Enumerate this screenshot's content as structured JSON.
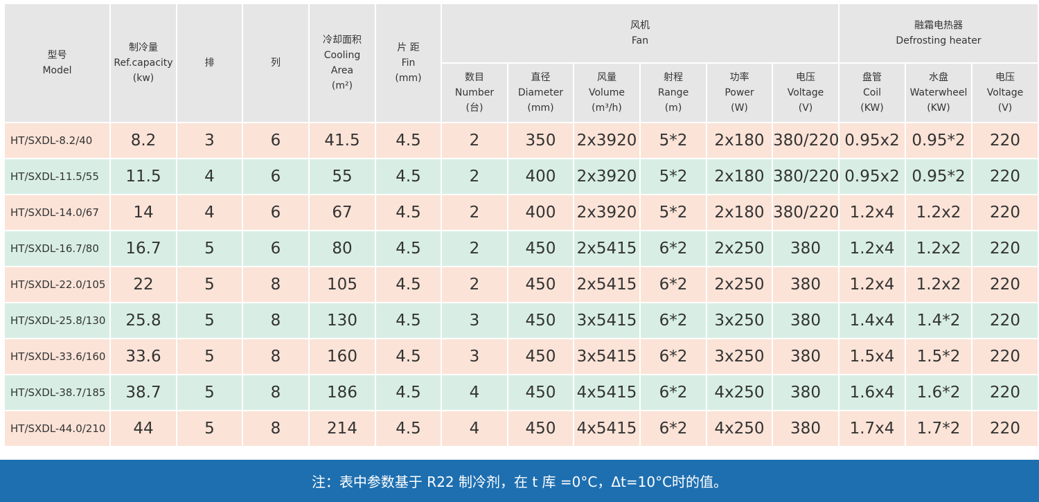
{
  "header": {
    "model": [
      "型号",
      "Model"
    ],
    "capacity": [
      "制冷量",
      "Ref.capacity",
      "(kw)"
    ],
    "rows": [
      "排"
    ],
    "cols": [
      "列"
    ],
    "area": [
      "冷却面积",
      "Cooling",
      "Area",
      "(m²)"
    ],
    "fin": [
      "片 距",
      "Fin",
      "(mm)"
    ],
    "fan_group": [
      "风机",
      "Fan"
    ],
    "defrost_group": [
      "融霜电热器",
      "Defrosting heater"
    ],
    "fan_number": [
      "数目",
      "Number",
      "(台)"
    ],
    "fan_diameter": [
      "直径",
      "Diameter",
      "(mm)"
    ],
    "fan_volume": [
      "风量",
      "Volume",
      "(m³/h)"
    ],
    "fan_range": [
      "射程",
      "Range",
      "(m)"
    ],
    "fan_power": [
      "功率",
      "Power",
      "(W)"
    ],
    "fan_voltage": [
      "电压",
      "Voltage",
      "(V)"
    ],
    "heater_coil": [
      "盘管",
      "Coil",
      "(KW)"
    ],
    "heater_waterwheel": [
      "水盘",
      "Waterwheel",
      "(KW)"
    ],
    "heater_voltage": [
      "电压",
      "Voltage",
      "(V)"
    ]
  },
  "rows": [
    [
      "HT/SXDL-8.2/40",
      "8.2",
      "3",
      "6",
      "41.5",
      "4.5",
      "2",
      "350",
      "2x3920",
      "5*2",
      "2x180",
      "380/220",
      "0.95x2",
      "0.95*2",
      "220"
    ],
    [
      "HT/SXDL-11.5/55",
      "11.5",
      "4",
      "6",
      "55",
      "4.5",
      "2",
      "400",
      "2x3920",
      "5*2",
      "2x180",
      "380/220",
      "0.95x2",
      "0.95*2",
      "220"
    ],
    [
      "HT/SXDL-14.0/67",
      "14",
      "4",
      "6",
      "67",
      "4.5",
      "2",
      "400",
      "2x3920",
      "5*2",
      "2x180",
      "380/220",
      "1.2x4",
      "1.2x2",
      "220"
    ],
    [
      "HT/SXDL-16.7/80",
      "16.7",
      "5",
      "6",
      "80",
      "4.5",
      "2",
      "450",
      "2x5415",
      "6*2",
      "2x250",
      "380",
      "1.2x4",
      "1.2x2",
      "220"
    ],
    [
      "HT/SXDL-22.0/105",
      "22",
      "5",
      "8",
      "105",
      "4.5",
      "2",
      "450",
      "2x5415",
      "6*2",
      "2x250",
      "380",
      "1.2x4",
      "1.2x2",
      "220"
    ],
    [
      "HT/SXDL-25.8/130",
      "25.8",
      "5",
      "8",
      "130",
      "4.5",
      "3",
      "450",
      "3x5415",
      "6*2",
      "3x250",
      "380",
      "1.4x4",
      "1.4*2",
      "220"
    ],
    [
      "HT/SXDL-33.6/160",
      "33.6",
      "5",
      "8",
      "160",
      "4.5",
      "3",
      "450",
      "3x5415",
      "6*2",
      "3x250",
      "380",
      "1.5x4",
      "1.5*2",
      "220"
    ],
    [
      "HT/SXDL-38.7/185",
      "38.7",
      "5",
      "8",
      "186",
      "4.5",
      "4",
      "450",
      "4x5415",
      "6*2",
      "4x250",
      "380",
      "1.6x4",
      "1.6*2",
      "220"
    ],
    [
      "HT/SXDL-44.0/210",
      "44",
      "5",
      "8",
      "214",
      "4.5",
      "4",
      "450",
      "4x5415",
      "6*2",
      "4x250",
      "380",
      "1.7x4",
      "1.7*2",
      "220"
    ]
  ],
  "note": "注：表中参数基于 R22 制冷剂，在 t 库 =0°C，Δt=10°C时的值。",
  "colors": {
    "header_bg": "#e6e6e6",
    "row_odd": "#fbe3d7",
    "row_even": "#d8eee5",
    "footer_bg": "#1e6fb0"
  }
}
